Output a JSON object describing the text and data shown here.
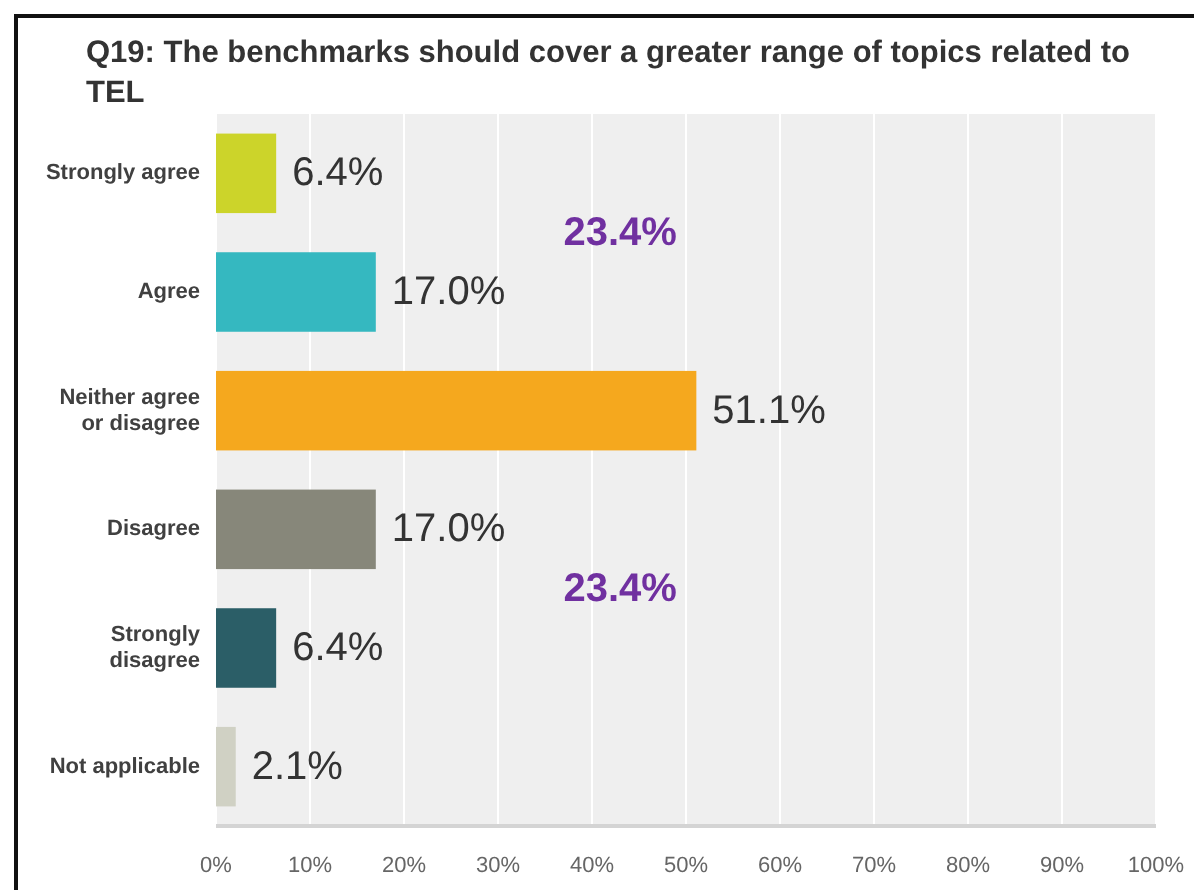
{
  "chart_data": {
    "type": "bar",
    "orientation": "horizontal",
    "title": "Q19: The benchmarks should cover a greater range of topics related to TEL",
    "categories": [
      "Strongly agree",
      "Agree",
      "Neither agree or disagree",
      "Disagree",
      "Strongly disagree",
      "Not applicable"
    ],
    "values": [
      6.4,
      17.0,
      51.1,
      17.0,
      6.4,
      2.1
    ],
    "colors": [
      "#ccd42a",
      "#35b8c0",
      "#f5a81e",
      "#87877a",
      "#2b5e67",
      "#d0d1c4"
    ],
    "value_labels": [
      "6.4%",
      "17.0%",
      "51.1%",
      "17.0%",
      "6.4%",
      "2.1%"
    ],
    "xlim": [
      0,
      100
    ],
    "xticks": [
      {
        "value": 0,
        "label": "0%"
      },
      {
        "value": 10,
        "label": "10%"
      },
      {
        "value": 20,
        "label": "20%"
      },
      {
        "value": 30,
        "label": "30%"
      },
      {
        "value": 40,
        "label": "40%"
      },
      {
        "value": 50,
        "label": "50%"
      },
      {
        "value": 60,
        "label": "60%"
      },
      {
        "value": 70,
        "label": "70%"
      },
      {
        "value": 80,
        "label": "80%"
      },
      {
        "value": 90,
        "label": "90%"
      },
      {
        "value": 100,
        "label": "100%"
      }
    ],
    "grid": "x",
    "annotations": [
      "23.4%",
      "23.4%"
    ]
  }
}
